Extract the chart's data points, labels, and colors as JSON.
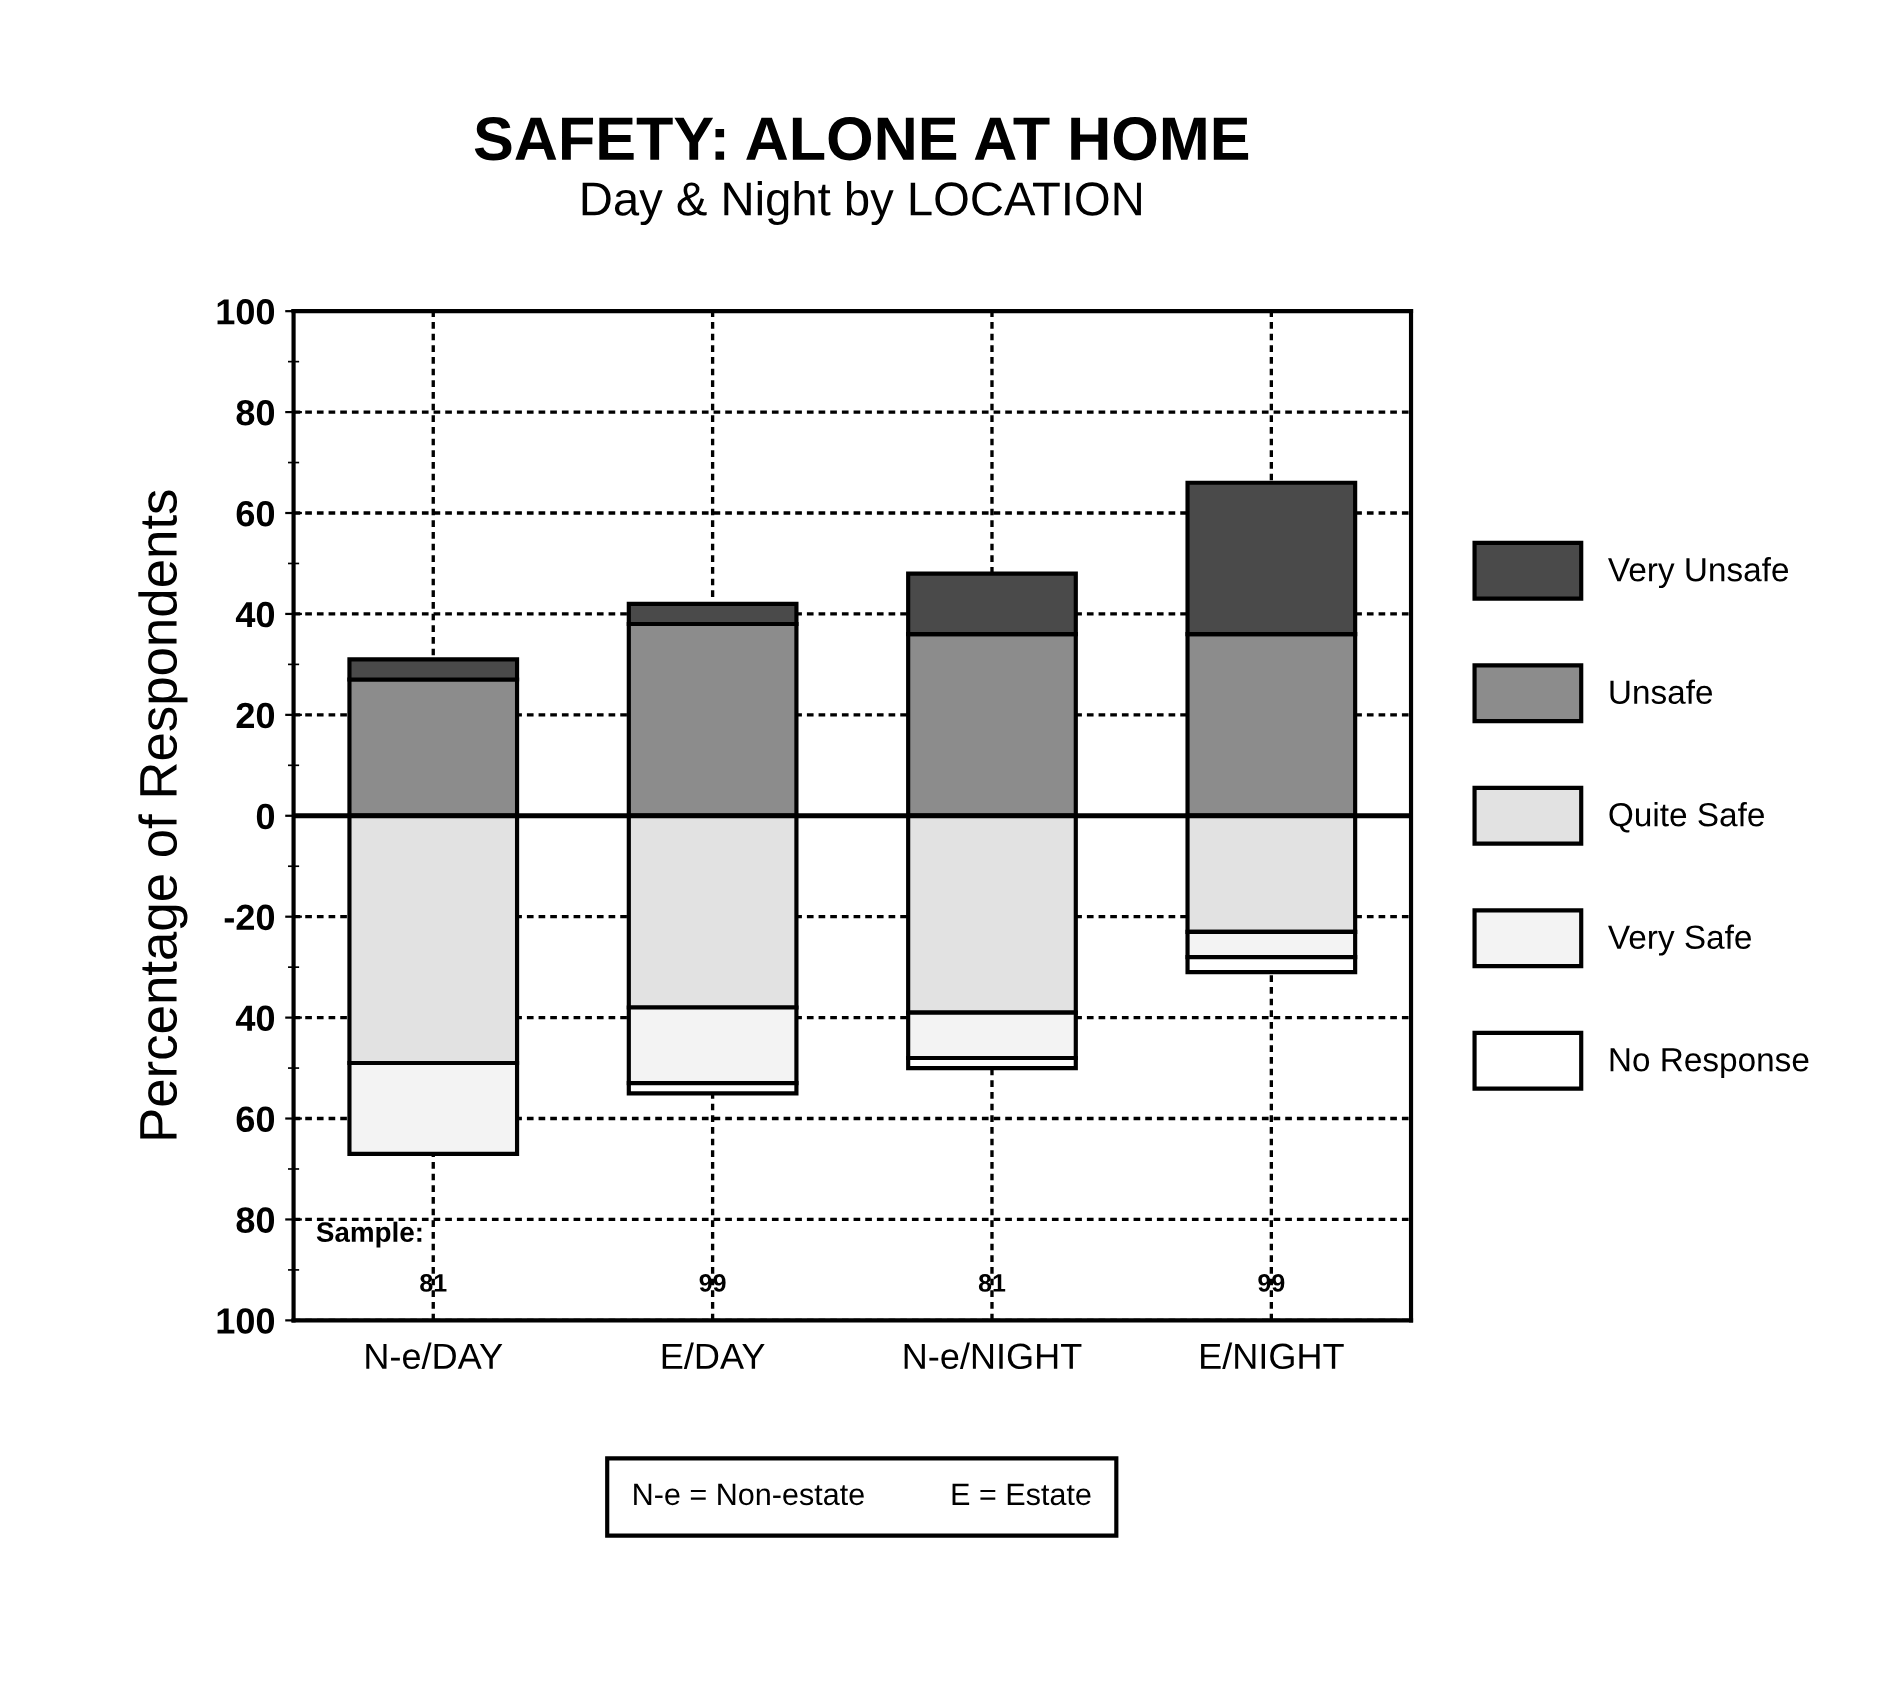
{
  "chart_data": {
    "type": "bar",
    "stacked": true,
    "title": "SAFETY: ALONE AT HOME",
    "subtitle": "Day & Night by LOCATION",
    "ylabel": "Percentage of Respondents",
    "categories": [
      "N-e/DAY",
      "E/DAY",
      "N-e/NIGHT",
      "E/NIGHT"
    ],
    "series": [
      {
        "name": "Unsafe",
        "color": "#8c8c8c",
        "values": [
          27,
          38,
          36,
          36
        ]
      },
      {
        "name": "Very Unsafe",
        "color": "#4a4a4a",
        "values": [
          4,
          4,
          12,
          30
        ]
      },
      {
        "name": "Quite Safe",
        "color": "#e2e2e2",
        "values": [
          -49,
          -38,
          -39,
          -23
        ]
      },
      {
        "name": "Very Safe",
        "color": "#f3f3f3",
        "values": [
          -18,
          -15,
          -9,
          -5
        ]
      },
      {
        "name": "No Response",
        "color": "#ffffff",
        "values": [
          null,
          -2,
          -2,
          -3
        ]
      }
    ],
    "ylim": [
      -100,
      100
    ],
    "yticks": [
      {
        "value": -100,
        "label": "100"
      },
      {
        "value": -80,
        "label": "80"
      },
      {
        "value": -60,
        "label": "60"
      },
      {
        "value": -40,
        "label": "40"
      },
      -20,
      0,
      20,
      40,
      60,
      80,
      100
    ],
    "ref_lines": [
      {
        "axis": "y",
        "value": 0,
        "label": null,
        "color": "#000000"
      }
    ],
    "grid": true,
    "legend": "right",
    "annotations": [
      "Sample:",
      "81",
      "99",
      "81",
      "99",
      "N-e = Non-estate          E = Estate"
    ]
  }
}
